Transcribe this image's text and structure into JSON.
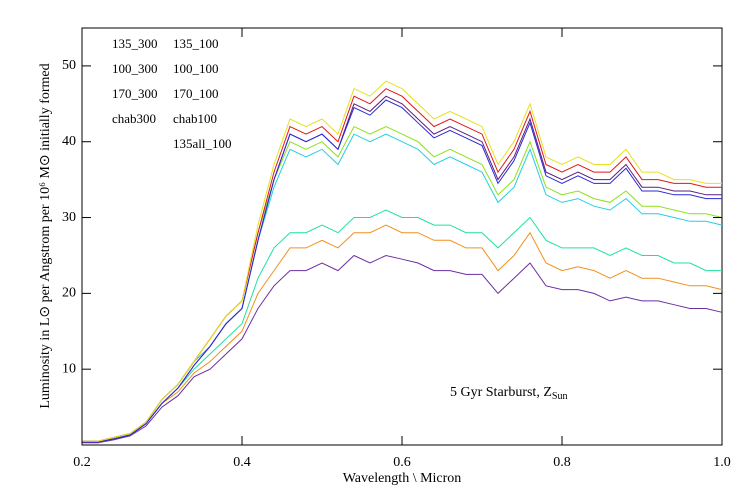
{
  "chart_data": {
    "type": "line",
    "xlabel": "Wavelength \\ Micron",
    "ylabel": "Luminosity in L⊙ per Angstrom per 10⁶ M⊙ initially formed",
    "annotation": {
      "text": "5 Gyr Starburst, Z",
      "subscript": "Sun"
    },
    "xlim": [
      0.2,
      1.0
    ],
    "ylim": [
      0,
      55
    ],
    "xticks": [
      0.2,
      0.4,
      0.6,
      0.8,
      {
        "value": 1.0,
        "label": "1.0"
      }
    ],
    "yticks": [
      10,
      20,
      30,
      40,
      50
    ],
    "x": [
      0.2,
      0.22,
      0.24,
      0.26,
      0.28,
      0.3,
      0.32,
      0.34,
      0.36,
      0.38,
      0.4,
      0.42,
      0.44,
      0.46,
      0.48,
      0.5,
      0.52,
      0.54,
      0.56,
      0.58,
      0.6,
      0.62,
      0.64,
      0.66,
      0.68,
      0.7,
      0.72,
      0.74,
      0.76,
      0.78,
      0.8,
      0.82,
      0.84,
      0.86,
      0.88,
      0.9,
      0.92,
      0.94,
      0.96,
      0.98,
      1.0
    ],
    "series": [
      {
        "name": "135_300",
        "color": "#5b1f7a",
        "values": [
          0.4,
          0.4,
          0.8,
          1.3,
          2.8,
          5.5,
          7.5,
          10.5,
          13,
          16,
          18,
          27,
          35,
          41,
          40,
          41,
          39,
          45,
          44,
          46,
          45,
          43,
          41,
          42,
          41,
          40,
          35,
          38,
          43,
          36,
          35,
          36,
          35,
          35,
          37,
          34,
          34,
          33.5,
          33.5,
          33,
          33
        ]
      },
      {
        "name": "135_100",
        "color": "#e01818",
        "values": [
          0.5,
          0.5,
          1,
          1.5,
          3,
          6,
          8,
          11,
          14,
          17,
          19,
          28,
          36,
          42,
          41,
          42,
          40,
          46,
          45,
          47,
          46,
          44,
          42,
          43,
          42,
          41,
          36,
          39,
          44,
          37,
          36,
          37,
          36,
          36,
          38,
          35,
          35,
          34.5,
          34.5,
          34,
          34
        ]
      },
      {
        "name": "100_300",
        "color": "#6b2fa0",
        "values": [
          0.3,
          0.3,
          0.7,
          1.2,
          2.5,
          5,
          6.5,
          9,
          10,
          12,
          14,
          18,
          21,
          23,
          23,
          24,
          23,
          25,
          24,
          25,
          24.5,
          24,
          23,
          23,
          22.5,
          22.5,
          20,
          22,
          24,
          21,
          20.5,
          20.5,
          20,
          19,
          19.5,
          19,
          19,
          18.5,
          18,
          18,
          17.5
        ]
      },
      {
        "name": "100_100",
        "color": "#f0901e",
        "values": [
          0.4,
          0.4,
          0.8,
          1.3,
          2.8,
          5.5,
          7,
          9.5,
          11,
          13,
          15,
          20,
          23,
          26,
          26,
          27,
          26,
          28,
          28,
          29,
          28,
          28,
          27,
          27,
          26,
          26,
          23,
          25,
          28,
          24,
          23,
          23.5,
          23,
          22,
          23,
          22,
          22,
          21.5,
          21,
          21,
          20.5
        ]
      },
      {
        "name": "170_300",
        "color": "#2a2ad8",
        "values": [
          0.4,
          0.4,
          0.8,
          1.3,
          2.8,
          5.5,
          7.5,
          10.5,
          13,
          16,
          18,
          27,
          35,
          41,
          40,
          41,
          39,
          44.5,
          43.5,
          45.5,
          44.5,
          42.5,
          40.5,
          41.5,
          40.5,
          39.5,
          34.5,
          37.5,
          42.5,
          35.5,
          34.5,
          35.5,
          34.5,
          34.5,
          36.5,
          33.5,
          33.5,
          33,
          33,
          32.5,
          32.5
        ]
      },
      {
        "name": "170_100",
        "color": "#e8e020",
        "values": [
          0.5,
          0.5,
          1,
          1.5,
          3,
          6,
          8,
          11,
          14,
          17,
          19,
          29,
          37,
          43,
          42,
          43,
          41,
          47,
          46,
          48,
          47,
          45,
          43,
          44,
          43,
          42,
          37,
          40,
          45,
          38,
          37,
          38,
          37,
          37,
          39,
          36,
          36,
          35,
          35,
          34.5,
          34.5
        ]
      },
      {
        "name": "chab300",
        "color": "#22d0e0",
        "values": [
          0.5,
          0.5,
          1,
          1.5,
          3,
          6,
          8,
          11,
          13,
          16,
          18,
          27,
          34,
          39,
          38,
          39,
          37,
          41,
          40,
          41,
          40,
          39,
          37,
          38,
          37,
          36,
          32,
          34,
          39,
          33,
          32,
          32.5,
          31.5,
          31,
          32.5,
          30.5,
          30.5,
          30,
          29.5,
          29.5,
          29
        ]
      },
      {
        "name": "chab100",
        "color": "#8ee01a",
        "values": [
          0.5,
          0.5,
          1,
          1.5,
          3,
          6,
          8,
          11,
          14,
          17,
          19,
          28,
          35,
          40,
          39,
          40,
          38,
          42,
          41,
          42,
          41,
          40,
          38,
          39,
          38,
          37,
          33,
          35,
          40,
          34,
          33,
          33.5,
          32.5,
          32,
          33.5,
          31.5,
          31.5,
          31,
          30.5,
          30.5,
          30
        ]
      },
      {
        "name": "135all_100",
        "color": "#20e0a0",
        "values": [
          0.4,
          0.4,
          0.8,
          1.3,
          2.8,
          5.5,
          7.5,
          10,
          12,
          14,
          16,
          22,
          26,
          28,
          28,
          29,
          28,
          30,
          30,
          31,
          30,
          30,
          29,
          29,
          28,
          28,
          26,
          28,
          30,
          27,
          26,
          26,
          26,
          25,
          26,
          25,
          25,
          24,
          24,
          23,
          23
        ]
      }
    ]
  }
}
